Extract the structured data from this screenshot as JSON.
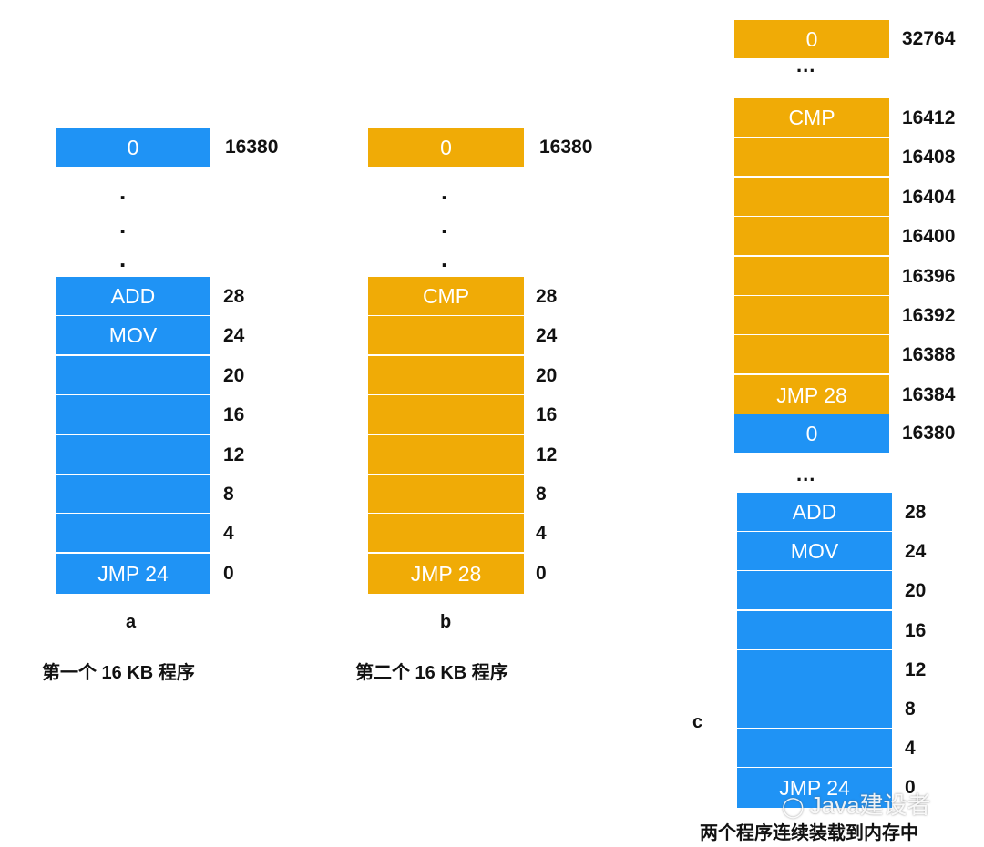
{
  "colors": {
    "program_a": "#1f93f5",
    "program_b": "#f0ab06",
    "text": "#111111"
  },
  "diagram_a": {
    "label": "a",
    "caption": "第一个 16 KB 程序",
    "top_cell": {
      "text": "0",
      "addr": "16380"
    },
    "cells": [
      {
        "text": "ADD",
        "addr": "28"
      },
      {
        "text": "MOV",
        "addr": "24"
      },
      {
        "text": "",
        "addr": "20"
      },
      {
        "text": "",
        "addr": "16"
      },
      {
        "text": "",
        "addr": "12"
      },
      {
        "text": "",
        "addr": "8"
      },
      {
        "text": "",
        "addr": "4"
      },
      {
        "text": "JMP 24",
        "addr": "0"
      }
    ]
  },
  "diagram_b": {
    "label": "b",
    "caption": "第二个 16 KB 程序",
    "top_cell": {
      "text": "0",
      "addr": "16380"
    },
    "cells": [
      {
        "text": "CMP",
        "addr": "28"
      },
      {
        "text": "",
        "addr": "24"
      },
      {
        "text": "",
        "addr": "20"
      },
      {
        "text": "",
        "addr": "16"
      },
      {
        "text": "",
        "addr": "12"
      },
      {
        "text": "",
        "addr": "8"
      },
      {
        "text": "",
        "addr": "4"
      },
      {
        "text": "JMP 28",
        "addr": "0"
      }
    ]
  },
  "diagram_c": {
    "label": "c",
    "caption": "两个程序连续装载到内存中",
    "ellipsis": "...",
    "top_cell": {
      "text": "0",
      "addr": "32764"
    },
    "orange_cells": [
      {
        "text": "CMP",
        "addr": "16412"
      },
      {
        "text": "",
        "addr": "16408"
      },
      {
        "text": "",
        "addr": "16404"
      },
      {
        "text": "",
        "addr": "16400"
      },
      {
        "text": "",
        "addr": "16396"
      },
      {
        "text": "",
        "addr": "16392"
      },
      {
        "text": "",
        "addr": "16388"
      },
      {
        "text": "JMP 28",
        "addr": "16384"
      }
    ],
    "boundary_cell": {
      "text": "0",
      "addr": "16380"
    },
    "blue_cells": [
      {
        "text": "ADD",
        "addr": "28"
      },
      {
        "text": "MOV",
        "addr": "24"
      },
      {
        "text": "",
        "addr": "20"
      },
      {
        "text": "",
        "addr": "16"
      },
      {
        "text": "",
        "addr": "12"
      },
      {
        "text": "",
        "addr": "8"
      },
      {
        "text": "",
        "addr": "4"
      },
      {
        "text": "JMP 24",
        "addr": "0"
      }
    ]
  },
  "watermark": "Java建设者"
}
